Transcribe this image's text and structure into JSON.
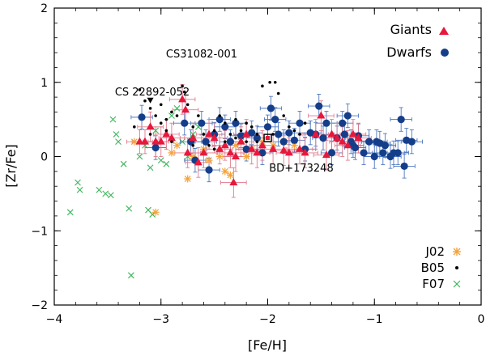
{
  "chart_data": {
    "type": "scatter",
    "xlabel": "[Fe/H]",
    "ylabel": "[Zr/Fe]",
    "xlim": [
      -4,
      0
    ],
    "ylim": [
      -2,
      2
    ],
    "x_ticks": [
      -4,
      -3,
      -2,
      -1,
      0
    ],
    "x_tick_labels": [
      "−4",
      "−3",
      "−2",
      "−1",
      "0"
    ],
    "y_ticks": [
      -2,
      -1,
      0,
      1,
      2
    ],
    "y_tick_labels": [
      "−2",
      "−1",
      "0",
      "1",
      "2"
    ],
    "colors": {
      "giants": "#e8173c",
      "giants_err": "#e07a8c",
      "dwarfs": "#153e8a",
      "dwarfs_err": "#4f78bf",
      "j02": "#f5a23a",
      "b05": "#000000",
      "f07": "#3cb55a"
    },
    "legend_top": [
      {
        "label": "Giants",
        "marker": "triangle",
        "color": "#e8173c"
      },
      {
        "label": "Dwarfs",
        "marker": "circle",
        "color": "#153e8a"
      }
    ],
    "legend_bottom": [
      {
        "label": "J02",
        "marker": "asterisk",
        "color": "#f5a23a"
      },
      {
        "label": "B05",
        "marker": "dot",
        "color": "#000000"
      },
      {
        "label": "F07",
        "marker": "cross",
        "color": "#3cb55a"
      }
    ],
    "annotations": [
      {
        "text": "CS31082-001",
        "x": -2.98,
        "y": 1.33
      },
      {
        "text": "CS 22892-052",
        "x": -3.25,
        "y": 0.81
      },
      {
        "text": "BD+173248",
        "x": -1.98,
        "y": -0.14
      }
    ],
    "special_points": [
      {
        "name": "CS 22892-052",
        "marker": "triangle-down",
        "x": -3.1,
        "y": 0.76
      },
      {
        "name": "BD+173248",
        "marker": "square",
        "x": -2.0,
        "y": 0.25
      }
    ],
    "series": [
      {
        "name": "Giants",
        "marker": "triangle",
        "points": [
          [
            -3.2,
            0.2,
            0.12,
            0.16
          ],
          [
            -3.15,
            0.2,
            0.12,
            0.16
          ],
          [
            -3.1,
            0.4,
            0.12,
            0.2
          ],
          [
            -3.05,
            0.2,
            0.12,
            0.2
          ],
          [
            -3.0,
            0.2,
            0.12,
            0.2
          ],
          [
            -2.95,
            0.3,
            0.12,
            0.2
          ],
          [
            -2.9,
            0.25,
            0.12,
            0.2
          ],
          [
            -2.8,
            0.77,
            0.12,
            0.2
          ],
          [
            -2.77,
            0.63,
            0.12,
            0.2
          ],
          [
            -2.75,
            0.05,
            0.12,
            0.2
          ],
          [
            -2.7,
            0.25,
            0.12,
            0.2
          ],
          [
            -2.65,
            -0.08,
            0.12,
            0.2
          ],
          [
            -2.6,
            0.05,
            0.12,
            0.2
          ],
          [
            -2.55,
            0.3,
            0.12,
            0.2
          ],
          [
            -2.5,
            0.25,
            0.12,
            0.2
          ],
          [
            -2.45,
            0.1,
            0.12,
            0.2
          ],
          [
            -2.4,
            0.15,
            0.12,
            0.2
          ],
          [
            -2.35,
            0.05,
            0.12,
            0.2
          ],
          [
            -2.32,
            -0.35,
            0.12,
            0.2
          ],
          [
            -2.3,
            0.0,
            0.12,
            0.2
          ],
          [
            -2.25,
            0.2,
            0.12,
            0.2
          ],
          [
            -2.2,
            0.3,
            0.12,
            0.2
          ],
          [
            -2.15,
            0.1,
            0.12,
            0.2
          ],
          [
            -2.1,
            0.05,
            0.12,
            0.2
          ],
          [
            -2.05,
            0.15,
            0.12,
            0.2
          ],
          [
            -1.95,
            0.1,
            0.12,
            0.2
          ],
          [
            -1.85,
            0.08,
            0.12,
            0.2
          ],
          [
            -1.8,
            0.05,
            0.12,
            0.2
          ],
          [
            -1.7,
            0.1,
            0.12,
            0.2
          ],
          [
            -1.65,
            0.05,
            0.12,
            0.2
          ],
          [
            -1.55,
            0.3,
            0.12,
            0.2
          ],
          [
            -1.5,
            0.55,
            0.12,
            0.2
          ],
          [
            -1.45,
            0.02,
            0.12,
            0.2
          ],
          [
            -1.4,
            0.3,
            0.12,
            0.2
          ],
          [
            -1.35,
            0.25,
            0.12,
            0.2
          ],
          [
            -1.3,
            0.2,
            0.12,
            0.2
          ],
          [
            -1.25,
            0.15,
            0.12,
            0.2
          ],
          [
            -1.2,
            0.3,
            0.12,
            0.2
          ],
          [
            -1.15,
            0.25,
            0.12,
            0.2
          ]
        ]
      },
      {
        "name": "Dwarfs",
        "marker": "circle",
        "points": [
          [
            -3.18,
            0.53,
            0.1,
            0.16
          ],
          [
            -3.05,
            0.12,
            0.1,
            0.16
          ],
          [
            -2.78,
            0.45,
            0.1,
            0.16
          ],
          [
            -2.72,
            0.2,
            0.1,
            0.16
          ],
          [
            -2.68,
            -0.05,
            0.1,
            0.16
          ],
          [
            -2.62,
            0.45,
            0.1,
            0.16
          ],
          [
            -2.58,
            0.2,
            0.1,
            0.16
          ],
          [
            -2.55,
            -0.18,
            0.1,
            0.16
          ],
          [
            -2.5,
            0.3,
            0.1,
            0.16
          ],
          [
            -2.45,
            0.5,
            0.1,
            0.16
          ],
          [
            -2.4,
            0.4,
            0.1,
            0.16
          ],
          [
            -2.35,
            0.2,
            0.1,
            0.16
          ],
          [
            -2.3,
            0.45,
            0.1,
            0.16
          ],
          [
            -2.25,
            0.28,
            0.1,
            0.16
          ],
          [
            -2.2,
            0.1,
            0.1,
            0.16
          ],
          [
            -2.15,
            0.32,
            0.1,
            0.16
          ],
          [
            -2.1,
            0.25,
            0.1,
            0.16
          ],
          [
            -2.05,
            0.05,
            0.1,
            0.16
          ],
          [
            -2.0,
            0.4,
            0.1,
            0.16
          ],
          [
            -1.97,
            0.65,
            0.1,
            0.16
          ],
          [
            -1.93,
            0.5,
            0.1,
            0.16
          ],
          [
            -1.9,
            0.3,
            0.1,
            0.16
          ],
          [
            -1.85,
            0.2,
            0.1,
            0.16
          ],
          [
            -1.8,
            0.32,
            0.1,
            0.16
          ],
          [
            -1.75,
            0.22,
            0.1,
            0.16
          ],
          [
            -1.7,
            0.45,
            0.1,
            0.16
          ],
          [
            -1.65,
            0.1,
            0.1,
            0.16
          ],
          [
            -1.6,
            0.32,
            0.1,
            0.16
          ],
          [
            -1.55,
            0.3,
            0.1,
            0.16
          ],
          [
            -1.52,
            0.68,
            0.1,
            0.16
          ],
          [
            -1.48,
            0.25,
            0.1,
            0.16
          ],
          [
            -1.45,
            0.45,
            0.1,
            0.16
          ],
          [
            -1.4,
            0.05,
            0.1,
            0.16
          ],
          [
            -1.35,
            0.25,
            0.1,
            0.16
          ],
          [
            -1.3,
            0.45,
            0.1,
            0.16
          ],
          [
            -1.28,
            0.3,
            0.1,
            0.16
          ],
          [
            -1.25,
            0.55,
            0.1,
            0.16
          ],
          [
            -1.22,
            0.2,
            0.1,
            0.16
          ],
          [
            -1.2,
            0.15,
            0.1,
            0.16
          ],
          [
            -1.18,
            0.12,
            0.1,
            0.16
          ],
          [
            -1.15,
            0.28,
            0.1,
            0.16
          ],
          [
            -1.1,
            0.05,
            0.1,
            0.16
          ],
          [
            -1.05,
            0.2,
            0.1,
            0.16
          ],
          [
            -1.0,
            0.0,
            0.1,
            0.16
          ],
          [
            -0.98,
            0.2,
            0.1,
            0.16
          ],
          [
            -0.95,
            0.18,
            0.1,
            0.16
          ],
          [
            -0.92,
            0.05,
            0.1,
            0.16
          ],
          [
            -0.9,
            0.15,
            0.1,
            0.16
          ],
          [
            -0.85,
            0.0,
            0.1,
            0.16
          ],
          [
            -0.82,
            0.05,
            0.1,
            0.16
          ],
          [
            -0.78,
            0.05,
            0.1,
            0.16
          ],
          [
            -0.75,
            0.5,
            0.1,
            0.16
          ],
          [
            -0.72,
            -0.13,
            0.1,
            0.16
          ],
          [
            -0.7,
            0.22,
            0.1,
            0.16
          ],
          [
            -0.65,
            0.2,
            0.1,
            0.16
          ]
        ]
      },
      {
        "name": "J02",
        "marker": "asterisk",
        "points": [
          [
            -3.25,
            0.2
          ],
          [
            -3.05,
            -0.75
          ],
          [
            -2.9,
            0.05
          ],
          [
            -2.85,
            0.15
          ],
          [
            -2.75,
            -0.3
          ],
          [
            -2.7,
            0.0
          ],
          [
            -2.6,
            0.1
          ],
          [
            -2.55,
            -0.05
          ],
          [
            -2.45,
            0.0
          ],
          [
            -2.4,
            -0.2
          ],
          [
            -2.35,
            -0.25
          ],
          [
            -2.3,
            0.15
          ],
          [
            -2.25,
            0.2
          ],
          [
            -2.2,
            0.0
          ],
          [
            -2.15,
            0.1
          ],
          [
            -2.05,
            0.2
          ],
          [
            -1.95,
            0.15
          ],
          [
            -1.85,
            0.2
          ],
          [
            -1.75,
            0.15
          ]
        ]
      },
      {
        "name": "B05",
        "marker": "dot",
        "points": [
          [
            -3.2,
            0.9
          ],
          [
            -3.15,
            0.75
          ],
          [
            -3.1,
            0.65
          ],
          [
            -3.05,
            0.55
          ],
          [
            -3.0,
            0.45
          ],
          [
            -2.95,
            0.5
          ],
          [
            -2.9,
            0.6
          ],
          [
            -2.85,
            0.55
          ],
          [
            -2.8,
            0.95
          ],
          [
            -2.78,
            0.87
          ],
          [
            -2.75,
            0.7
          ],
          [
            -2.7,
            0.4
          ],
          [
            -2.65,
            0.55
          ],
          [
            -2.6,
            0.3
          ],
          [
            -2.55,
            0.15
          ],
          [
            -2.5,
            0.35
          ],
          [
            -2.45,
            0.55
          ],
          [
            -2.4,
            0.45
          ],
          [
            -2.35,
            0.3
          ],
          [
            -2.3,
            0.5
          ],
          [
            -2.25,
            0.35
          ],
          [
            -2.2,
            0.2
          ],
          [
            -2.15,
            0.4
          ],
          [
            -2.1,
            0.3
          ],
          [
            -2.05,
            0.95
          ],
          [
            -1.98,
            1.0
          ],
          [
            -1.93,
            1.0
          ],
          [
            -1.9,
            0.85
          ],
          [
            -1.85,
            0.55
          ],
          [
            -1.8,
            0.4
          ],
          [
            -1.75,
            0.35
          ],
          [
            -1.7,
            0.3
          ],
          [
            -1.65,
            0.45
          ],
          [
            -3.25,
            0.4
          ],
          [
            -3.1,
            0.3
          ],
          [
            -3.0,
            0.7
          ],
          [
            -2.95,
            0.35
          ],
          [
            -2.9,
            0.2
          ],
          [
            -2.7,
            0.15
          ],
          [
            -2.5,
            0.1
          ],
          [
            -2.4,
            0.2
          ],
          [
            -2.3,
            0.25
          ],
          [
            -2.2,
            0.45
          ],
          [
            -2.1,
            0.2
          ],
          [
            -1.95,
            0.3
          ]
        ]
      },
      {
        "name": "F07",
        "marker": "cross",
        "points": [
          [
            -3.85,
            -0.75
          ],
          [
            -3.78,
            -0.35
          ],
          [
            -3.76,
            -0.45
          ],
          [
            -3.58,
            -0.45
          ],
          [
            -3.52,
            -0.5
          ],
          [
            -3.47,
            -0.52
          ],
          [
            -3.45,
            0.5
          ],
          [
            -3.42,
            0.3
          ],
          [
            -3.4,
            0.2
          ],
          [
            -3.35,
            -0.1
          ],
          [
            -3.3,
            -0.7
          ],
          [
            -3.28,
            -1.6
          ],
          [
            -3.2,
            0.0
          ],
          [
            -3.15,
            0.15
          ],
          [
            -3.1,
            -0.15
          ],
          [
            -3.05,
            0.35
          ],
          [
            -3.0,
            -0.05
          ],
          [
            -2.95,
            -0.1
          ],
          [
            -2.9,
            0.55
          ],
          [
            -2.85,
            0.65
          ],
          [
            -2.8,
            0.2
          ],
          [
            -2.75,
            0.0
          ],
          [
            -2.7,
            0.3
          ],
          [
            -2.65,
            0.4
          ],
          [
            -3.12,
            -0.72
          ],
          [
            -3.08,
            -0.78
          ]
        ]
      }
    ]
  }
}
